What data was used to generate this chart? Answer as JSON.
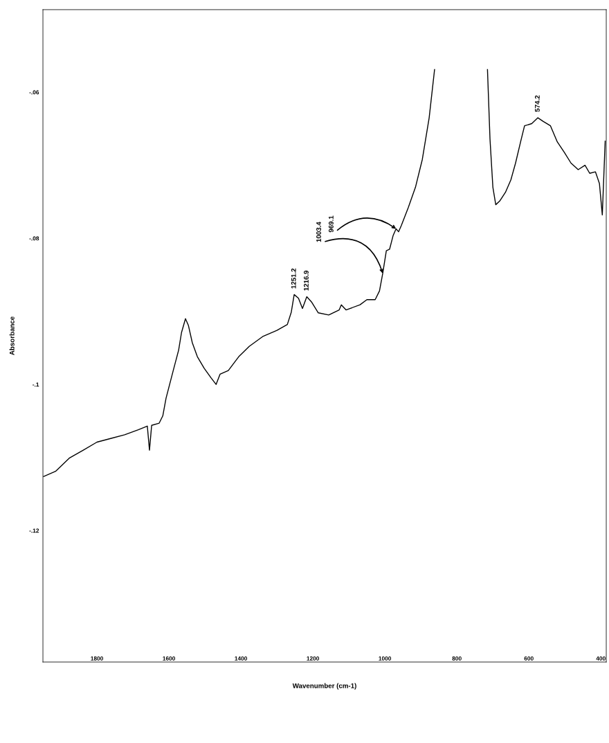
{
  "chart_data": {
    "type": "line",
    "xlabel": "Wavenumber (cm-1)",
    "ylabel": "Absorbance",
    "xlim": [
      1950,
      385
    ],
    "xticks": [
      1800,
      1600,
      1400,
      1200,
      1000,
      800,
      600,
      400
    ],
    "ylim": [
      -0.138,
      -0.0487
    ],
    "yticks": [
      {
        "value": -0.06,
        "label": "-.06"
      },
      {
        "value": -0.08,
        "label": "-.08"
      },
      {
        "value": -0.1,
        "label": "-.1"
      },
      {
        "value": -0.12,
        "label": "-.12"
      }
    ],
    "grid": false,
    "marker": "none",
    "line_style": "solid",
    "series": [
      {
        "color": "#000000",
        "x": [
          1948,
          1915,
          1877,
          1838,
          1800,
          1762,
          1723,
          1685,
          1660,
          1654,
          1648,
          1627,
          1617,
          1608,
          1588,
          1573,
          1565,
          1554,
          1546,
          1535,
          1521,
          1502,
          1483,
          1469,
          1458,
          1435,
          1406,
          1377,
          1338,
          1300,
          1271,
          1260,
          1252,
          1240,
          1229,
          1217,
          1204,
          1185,
          1156,
          1127,
          1121,
          1108,
          1069,
          1050,
          1027,
          1015,
          1006,
          996,
          987,
          977,
          969,
          962,
          954,
          935,
          915,
          896,
          877,
          862,
          852,
          723,
          715,
          708,
          700,
          692,
          681,
          665,
          650,
          637,
          623,
          612,
          592,
          575,
          560,
          540,
          521,
          502,
          483,
          463,
          444,
          431,
          415,
          404,
          396,
          388
        ],
        "values": [
          -0.1126,
          -0.1119,
          -0.1101,
          -0.109,
          -0.1079,
          -0.1074,
          -0.1069,
          -0.1062,
          -0.1057,
          -0.109,
          -0.1056,
          -0.1053,
          -0.1043,
          -0.1019,
          -0.0981,
          -0.0953,
          -0.0929,
          -0.091,
          -0.0919,
          -0.0943,
          -0.0962,
          -0.0978,
          -0.0991,
          -0.1,
          -0.0986,
          -0.0981,
          -0.0962,
          -0.0948,
          -0.0934,
          -0.0926,
          -0.0918,
          -0.0901,
          -0.0877,
          -0.0882,
          -0.0896,
          -0.088,
          -0.0887,
          -0.0902,
          -0.0905,
          -0.0898,
          -0.0891,
          -0.0898,
          -0.0891,
          -0.0884,
          -0.0884,
          -0.0872,
          -0.0848,
          -0.0817,
          -0.0815,
          -0.0796,
          -0.0787,
          -0.0791,
          -0.0782,
          -0.0758,
          -0.073,
          -0.0692,
          -0.0635,
          -0.0569,
          null,
          null,
          -0.0569,
          -0.0664,
          -0.073,
          -0.0754,
          -0.0749,
          -0.0737,
          -0.072,
          -0.0697,
          -0.0668,
          -0.0646,
          -0.0643,
          -0.0635,
          -0.064,
          -0.0646,
          -0.0668,
          -0.0682,
          -0.0697,
          -0.0706,
          -0.07,
          -0.0711,
          -0.0709,
          -0.0725,
          -0.0768,
          -0.0667
        ]
      }
    ],
    "annotations": [
      {
        "text": "1251.2",
        "x": 1252,
        "y": -0.0877
      },
      {
        "text": "1216.9",
        "x": 1217,
        "y": -0.088
      },
      {
        "text": "1003.4",
        "x": 1006,
        "y": -0.0848
      },
      {
        "text": "969.1",
        "x": 969,
        "y": -0.0787
      },
      {
        "text": "574.2",
        "x": 575,
        "y": -0.0635
      }
    ]
  }
}
